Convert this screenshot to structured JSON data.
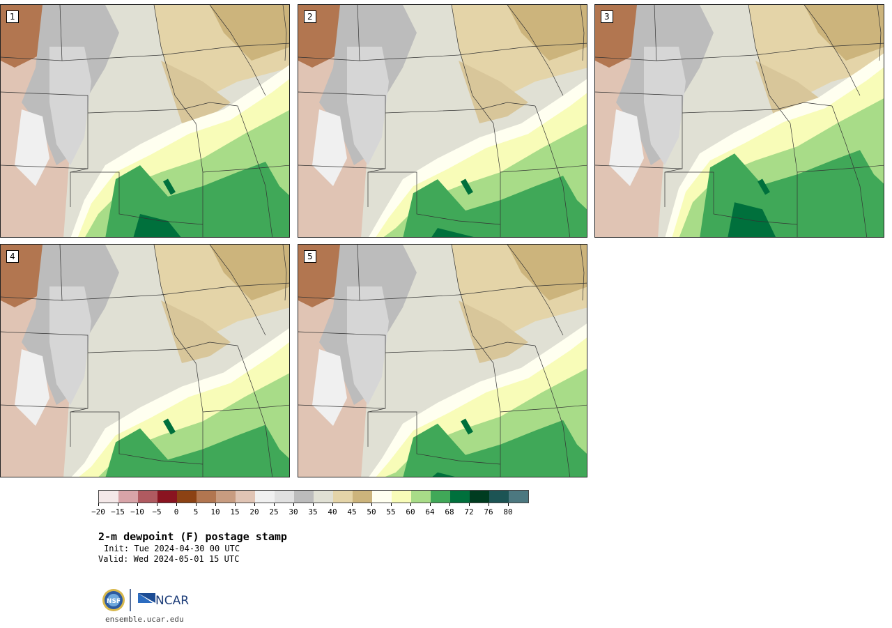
{
  "product": {
    "title": "2-m dewpoint (F) postage stamp",
    "init": "Init: Tue 2024-04-30 00 UTC",
    "valid": "Valid: Wed 2024-05-01 15 UTC",
    "site": "ensemble.ucar.edu",
    "logo_text": {
      "nsf": "NSF",
      "ncar": "NCAR"
    }
  },
  "members": [
    {
      "label": "1",
      "front_shift": 0
    },
    {
      "label": "2",
      "front_shift": 0.06
    },
    {
      "label": "3",
      "front_shift": -0.05
    },
    {
      "label": "4",
      "front_shift": 0.1
    },
    {
      "label": "5",
      "front_shift": 0.08
    }
  ],
  "colorbar": {
    "colors": [
      "#f4e8e8",
      "#d8a4a8",
      "#b05a60",
      "#8a1420",
      "#8c4214",
      "#b27650",
      "#c89c80",
      "#e0c4b4",
      "#f0f0f0",
      "#e0e0e0",
      "#bcbcbc",
      "#e0e0d4",
      "#e4d4a8",
      "#ccb47c",
      "#fffff0",
      "#f8fcb8",
      "#a8dc88",
      "#40a858",
      "#00703c",
      "#003c20",
      "#1c5454",
      "#4c7880"
    ],
    "tick_labels": [
      "−20",
      "−15",
      "−10",
      "−5",
      "0",
      "5",
      "10",
      "15",
      "20",
      "25",
      "30",
      "35",
      "40",
      "45",
      "50",
      "55",
      "60",
      "64",
      "68",
      "72",
      "76",
      "80"
    ]
  }
}
